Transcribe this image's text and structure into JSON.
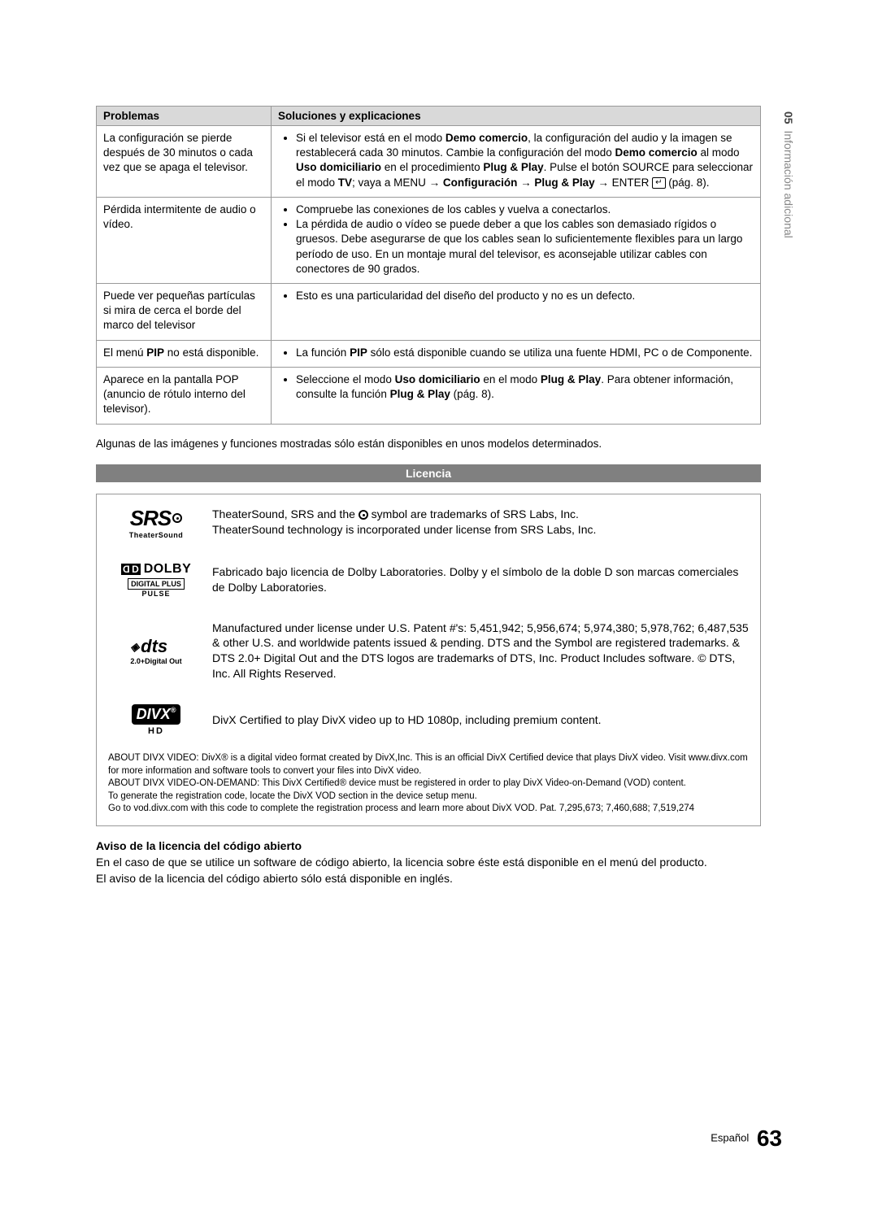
{
  "side_tab": {
    "num": "05",
    "text": "Información adicional"
  },
  "table": {
    "headers": [
      "Problemas",
      "Soluciones y explicaciones"
    ],
    "rows": [
      {
        "problem": "La configuración se pierde después de 30 minutos o cada vez que se apaga el televisor.",
        "solutions_html": "Si el televisor está en el modo <b>Demo comercio</b>, la configuración del audio y la imagen se restablecerá cada 30 minutos. Cambie la configuración del modo <b>Demo comercio</b> al modo <b>Uso domiciliario</b> en el procedimiento <b>Plug & Play</b>. Pulse el botón SOURCE para seleccionar el modo <b>TV</b>; vaya a MENU → <b>Configuración</b> → <b>Plug & Play</b> → ENTER <span class='enter-icon'>↵</span> (pág. 8)."
      },
      {
        "problem": "Pérdida intermitente de audio o vídeo.",
        "solutions_list": [
          "Compruebe las conexiones de los cables y vuelva a conectarlos.",
          "La pérdida de audio o vídeo se puede deber a que los cables son demasiado rígidos o gruesos. Debe asegurarse de que los cables sean lo suficientemente flexibles para un largo período de uso. En un montaje mural del televisor, es aconsejable utilizar cables con conectores de 90 grados."
        ]
      },
      {
        "problem": "Puede ver pequeñas partículas si mira de cerca el borde del marco del televisor",
        "solutions_list": [
          "Esto es una particularidad del diseño del producto y no es un defecto."
        ]
      },
      {
        "problem_html": "El menú <b>PIP</b> no está disponible.",
        "solutions_html_single": "La función <b>PIP</b> sólo está disponible cuando se utiliza una fuente HDMI, PC o de Componente."
      },
      {
        "problem": "Aparece en la pantalla POP (anuncio de rótulo interno del televisor).",
        "solutions_html_single": "Seleccione el modo <b>Uso domiciliario</b> en el modo <b>Plug & Play</b>. Para obtener información, consulte la función <b>Plug & Play</b> (pág. 8)."
      }
    ]
  },
  "note_after": "Algunas de las imágenes y funciones mostradas sólo están disponibles en unos modelos determinados.",
  "section_title": "Licencia",
  "licenses": {
    "srs": {
      "logo_main": "SRS",
      "logo_sub": "TheaterSound",
      "text_html": "TheaterSound, SRS and the <span class='sym-circ'></span> symbol are trademarks of SRS Labs, Inc.<br>TheaterSound technology is incorporated under license from SRS Labs, Inc."
    },
    "dolby": {
      "logo_main": "DOLBY",
      "logo_sub1": "DIGITAL PLUS",
      "logo_sub2": "PULSE",
      "text": "Fabricado bajo licencia de Dolby Laboratories. Dolby y el símbolo de la doble D son marcas comerciales de Dolby Laboratories."
    },
    "dts": {
      "logo_main": "dts",
      "logo_sub": "2.0+Digital Out",
      "text": "Manufactured under license under U.S. Patent #'s: 5,451,942; 5,956,674; 5,974,380; 5,978,762; 6,487,535 & other U.S. and worldwide patents issued & pending. DTS and the Symbol are registered trademarks. & DTS 2.0+ Digital Out and the DTS logos are trademarks of DTS, Inc. Product Includes software. © DTS, Inc. All Rights Reserved."
    },
    "divx": {
      "logo_main": "DIVX",
      "logo_sub": "HD",
      "text": "DivX Certified to play DivX video up to HD 1080p, including premium content."
    },
    "divx_about": "ABOUT DIVX VIDEO: DivX® is a digital video format created by DivX,Inc. This is an official DivX Certified device that plays DivX video. Visit www.divx.com for more information and software tools to convert your files into DivX video.\nABOUT DIVX VIDEO-ON-DEMAND: This DivX Certified® device must be registered in order to play DivX Video-on-Demand (VOD) content.\nTo generate the registration code, locate the DivX VOD section in the device setup menu.\nGo to vod.divx.com with this code to complete the registration process and learn more about DivX VOD. Pat. 7,295,673; 7,460,688; 7,519,274"
  },
  "aviso": {
    "heading": "Aviso de la licencia del código abierto",
    "p1": "En el caso de que se utilice un software de código abierto, la licencia sobre éste está disponible en el menú del producto.",
    "p2": "El aviso de la licencia del código abierto sólo está disponible en inglés."
  },
  "footer": {
    "lang": "Español",
    "page": "63"
  }
}
